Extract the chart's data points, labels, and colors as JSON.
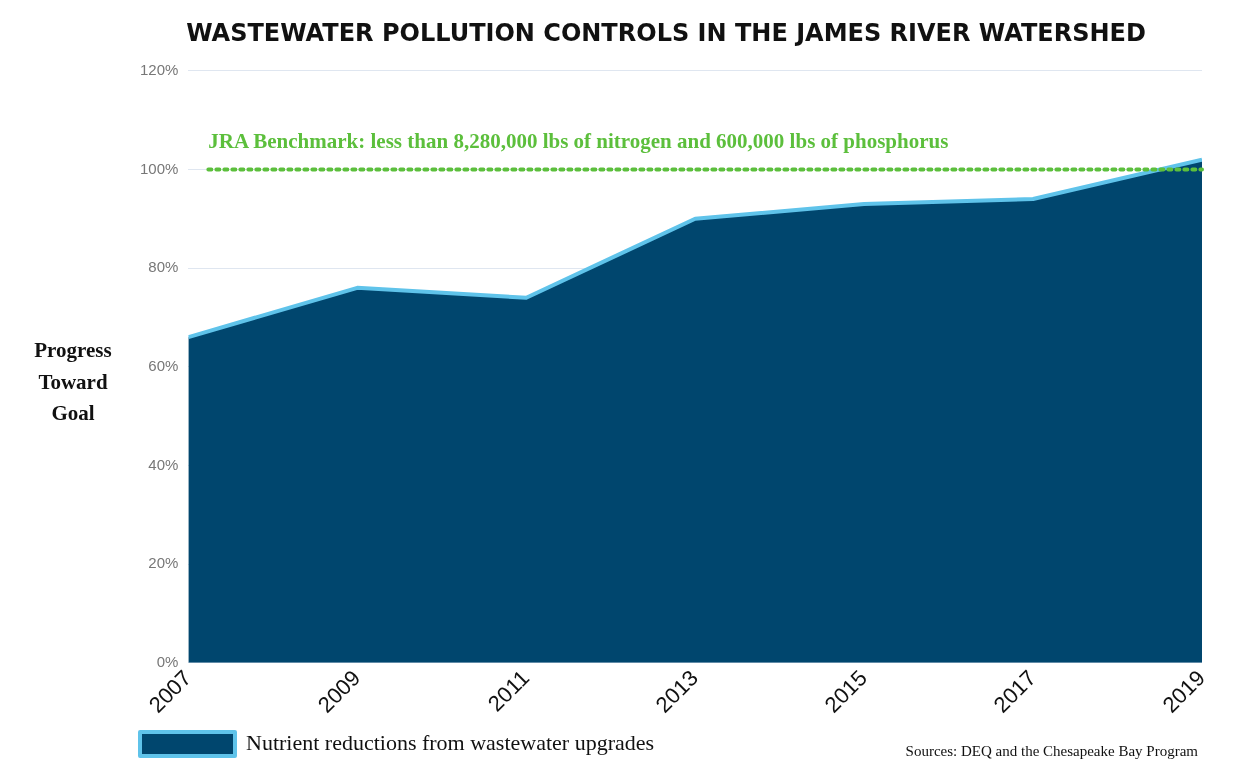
{
  "chart_data": {
    "type": "area",
    "title": "WASTEWATER POLLUTION CONTROLS IN THE JAMES RIVER WATERSHED",
    "ylabel": "Progress Toward Goal",
    "x": [
      2007,
      2009,
      2011,
      2013,
      2015,
      2017,
      2019
    ],
    "series": [
      {
        "name": "Nutrient reductions from wastewater upgrades",
        "color": "#00466e",
        "values": [
          66,
          76,
          74,
          90,
          93,
          94,
          102
        ]
      }
    ],
    "xlim": [
      2007,
      2019
    ],
    "xticks": [
      2007,
      2009,
      2011,
      2013,
      2015,
      2017,
      2019
    ],
    "ylim": [
      0,
      120
    ],
    "yticks": [
      {
        "value": 0,
        "label": "0%"
      },
      {
        "value": 20,
        "label": "20%"
      },
      {
        "value": 40,
        "label": "40%"
      },
      {
        "value": 60,
        "label": "60%"
      },
      {
        "value": 80,
        "label": "80%"
      },
      {
        "value": 100,
        "label": "100%"
      },
      {
        "value": 120,
        "label": "120%"
      }
    ],
    "ref_lines": [
      {
        "axis": "y",
        "value": 100,
        "label": "JRA Benchmark: less than 8,280,000 lbs of nitrogen and 600,000 lbs of phosphorus",
        "color": "#5cbf3c",
        "line_style": "dotted"
      }
    ],
    "annotations": [
      "Sources: DEQ and the Chesapeake Bay Program"
    ],
    "grid": "y",
    "legend": "bottom left"
  }
}
